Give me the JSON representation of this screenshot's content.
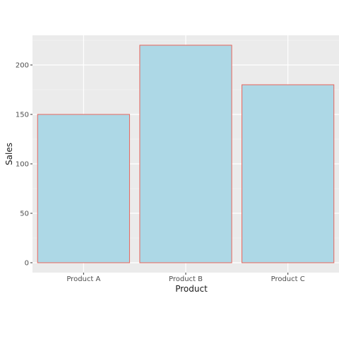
{
  "chart_data": {
    "type": "bar",
    "title": "",
    "xlabel": "Product",
    "ylabel": "Sales",
    "categories": [
      "Product A",
      "Product B",
      "Product C"
    ],
    "values": [
      150,
      220,
      180
    ],
    "ylim": [
      -10,
      230
    ],
    "yticks": [
      0,
      50,
      100,
      150,
      200
    ],
    "grid": true,
    "legend": "none",
    "colors": {
      "panel_background": "#ebebeb",
      "grid_major": "#ffffff",
      "bar_fill": "#add8e6",
      "bar_outline": "#e8635a",
      "tick_text": "#4d4d4d",
      "axis_title_text": "#1a1a1a"
    }
  }
}
